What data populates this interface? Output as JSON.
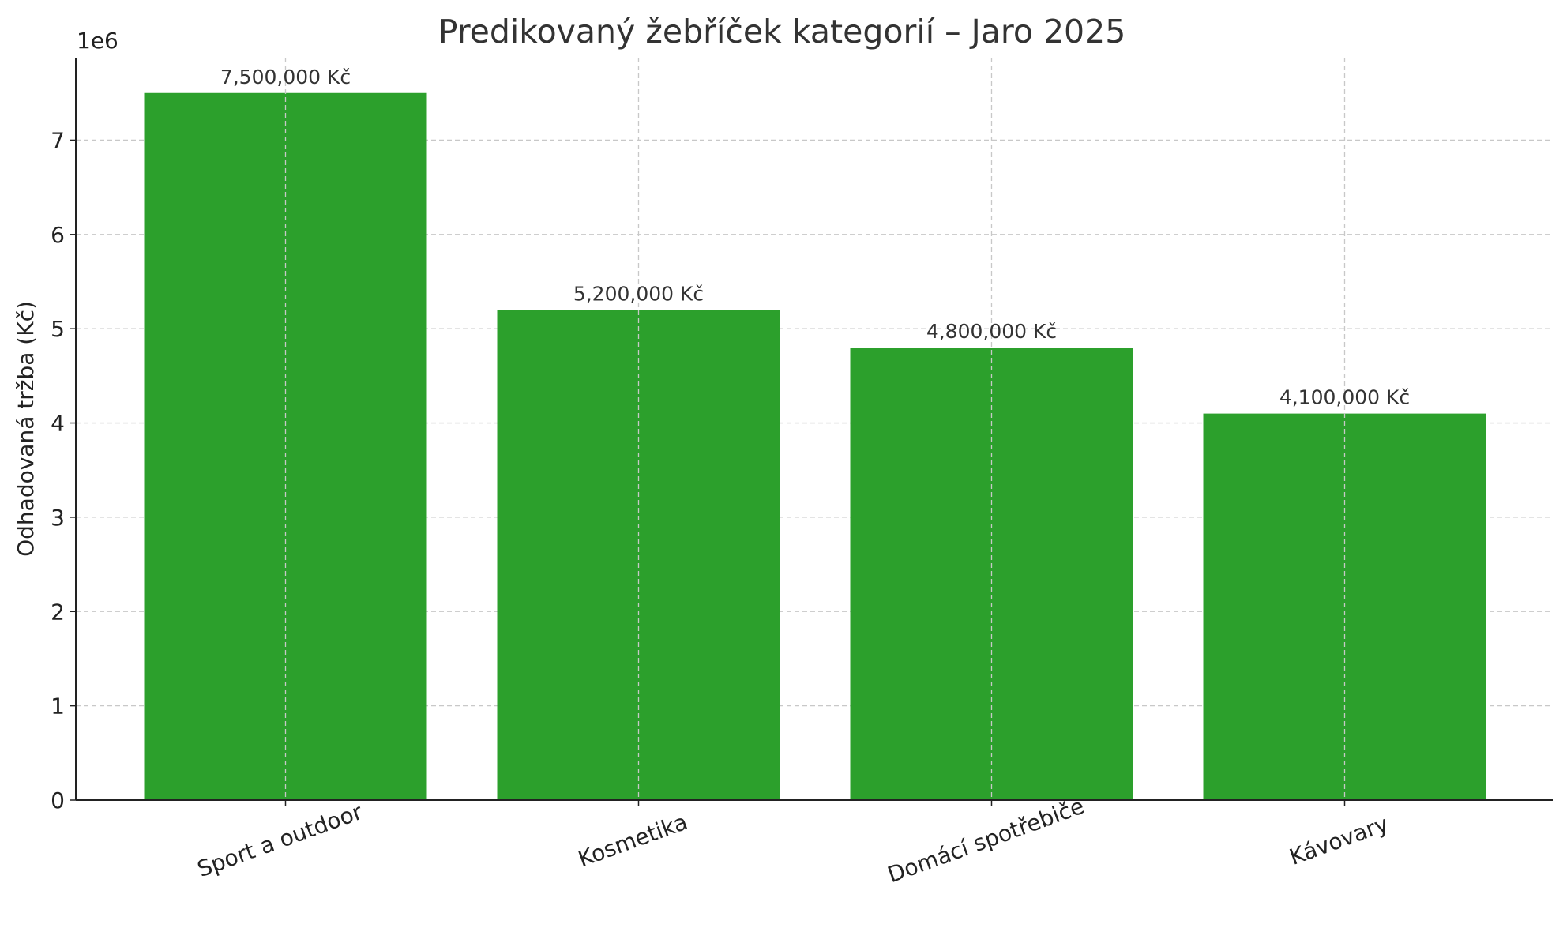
{
  "chart_data": {
    "type": "bar",
    "title": "Predikovaný žebříček kategorií – Jaro 2025",
    "xlabel": "",
    "ylabel": "Odhadovaná tržba (Kč)",
    "offset_text": "1e6",
    "categories": [
      "Sport a outdoor",
      "Kosmetika",
      "Domácí spotřebiče",
      "Kávovary"
    ],
    "values": [
      7500000,
      5200000,
      4800000,
      4100000
    ],
    "data_labels": [
      "7,500,000 Kč",
      "5,200,000 Kč",
      "4,800,000 Kč",
      "4,100,000 Kč"
    ],
    "yticks": [
      0,
      1000000,
      2000000,
      3000000,
      4000000,
      5000000,
      6000000,
      7000000
    ],
    "ytick_labels": [
      "0",
      "1",
      "2",
      "3",
      "4",
      "5",
      "6",
      "7"
    ],
    "ylim": [
      0,
      7875000
    ],
    "grid": true,
    "bar_color": "#2ca02c"
  }
}
